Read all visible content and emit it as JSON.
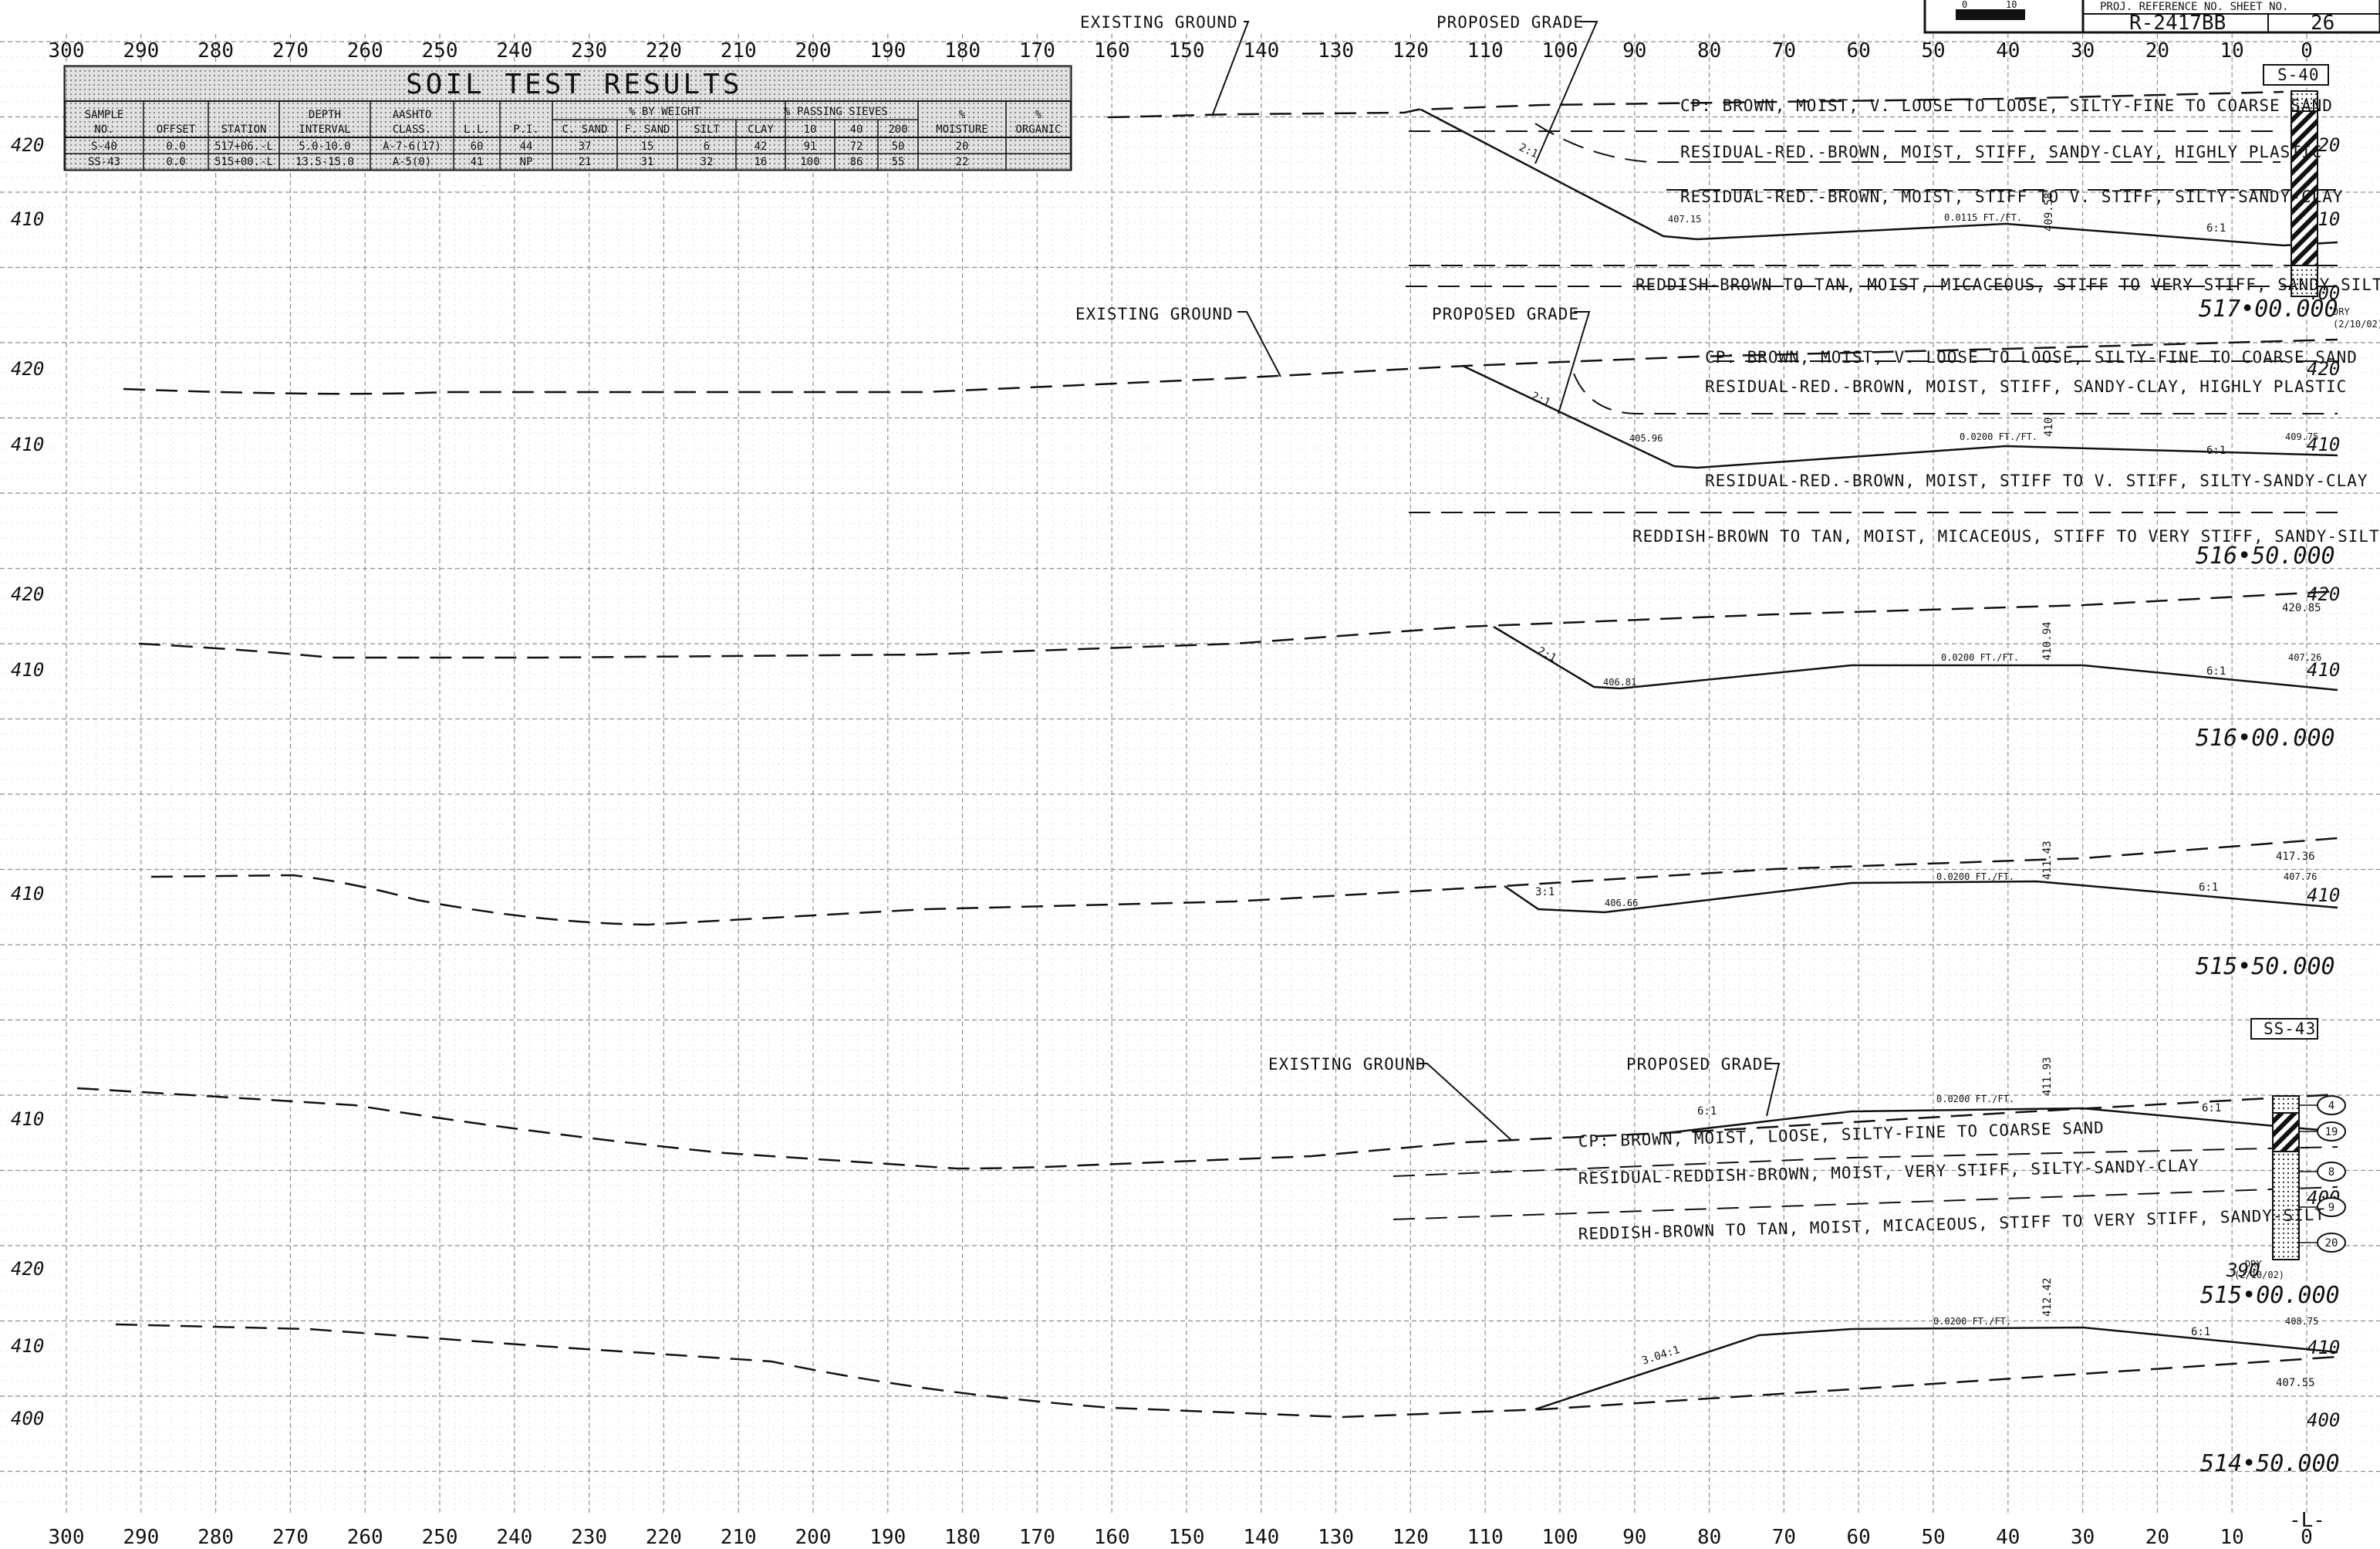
{
  "title_block": {
    "header_label": "PROJ. REFERENCE NO. SHEET NO.",
    "reference_no": "R-2417BB",
    "sheet_no": "26",
    "scale_labels": [
      "0",
      "10"
    ]
  },
  "x_axis": {
    "ticks": [
      "300",
      "290",
      "280",
      "270",
      "260",
      "250",
      "240",
      "230",
      "220",
      "210",
      "200",
      "190",
      "180",
      "170",
      "160",
      "150",
      "140",
      "130",
      "120",
      "110",
      "100",
      "90",
      "80",
      "70",
      "60",
      "50",
      "40",
      "30",
      "20",
      "10",
      "0"
    ],
    "bottom_label": "-L-"
  },
  "soil_table": {
    "title": "SOIL TEST RESULTS",
    "group_headers": {
      "by_weight": "% BY WEIGHT",
      "passing_sieves": "% PASSING SIEVES"
    },
    "columns": [
      "SAMPLE NO.",
      "OFFSET",
      "STATION",
      "DEPTH INTERVAL",
      "AASHTO CLASS.",
      "L.L.",
      "P.I.",
      "C. SAND",
      "F. SAND",
      "SILT",
      "CLAY",
      "10",
      "40",
      "200",
      "% MOISTURE",
      "% ORGANIC"
    ],
    "rows": [
      [
        "S-40",
        "0.0",
        "517+06.-L",
        "5.0-10.0",
        "A-7-6(17)",
        "60",
        "44",
        "37",
        "15",
        "6",
        "42",
        "91",
        "72",
        "50",
        "20",
        ""
      ],
      [
        "SS-43",
        "0.0",
        "515+00.-L",
        "13.5-15.0",
        "A-5(0)",
        "41",
        "NP",
        "21",
        "31",
        "32",
        "16",
        "100",
        "86",
        "55",
        "22",
        ""
      ]
    ]
  },
  "sections": [
    {
      "station": "517+00.000",
      "left_elevs": [
        "420",
        "410"
      ],
      "right_elevs": [
        "420",
        "410",
        "400"
      ],
      "callouts": [
        "EXISTING GROUND",
        "PROPOSED GRADE"
      ],
      "slope_left": "2:1",
      "slope_right": "6:1",
      "grade_label": "0.0115 FT./FT.",
      "point_left": "407.15",
      "centerline_elev": "409.58",
      "boring": "S-40",
      "boring_note": "DRY (2/10/02)",
      "strata": [
        "CP: BROWN, MOIST, V. LOOSE TO LOOSE, SILTY-FINE TO COARSE SAND",
        "RESIDUAL-RED.-BROWN, MOIST, STIFF, SANDY-CLAY, HIGHLY PLASTIC",
        "RESIDUAL-RED.-BROWN, MOIST, STIFF TO V. STIFF, SILTY-SANDY-CLAY",
        "REDDISH-BROWN TO TAN, MOIST, MICACEOUS, STIFF TO VERY STIFF, SANDY-SILT"
      ]
    },
    {
      "station": "516+50.000",
      "left_elevs": [
        "420",
        "410"
      ],
      "right_elevs": [
        "420",
        "410"
      ],
      "callouts": [
        "EXISTING GROUND",
        "PROPOSED GRADE"
      ],
      "slope_left": "2:1",
      "slope_right": "6:1",
      "grade_label": "0.0200 FT./FT.",
      "point_left": "405.96",
      "point_right": "409.75",
      "centerline_elev": "410.",
      "strata": [
        "CP: BROWN, MOIST, V. LOOSE TO LOOSE, SILTY-FINE TO COARSE SAND",
        "RESIDUAL-RED.-BROWN, MOIST, STIFF, SANDY-CLAY, HIGHLY PLASTIC",
        "RESIDUAL-RED.-BROWN, MOIST, STIFF TO V. STIFF, SILTY-SANDY-CLAY",
        "REDDISH-BROWN TO TAN, MOIST, MICACEOUS, STIFF TO VERY STIFF, SANDY-SILT"
      ]
    },
    {
      "station": "516+00.000",
      "left_elevs": [
        "420",
        "410"
      ],
      "right_elevs": [
        "420",
        "410"
      ],
      "top_elev": "420.85",
      "slope_left": "2:1",
      "slope_right": "6:1",
      "grade_label": "0.0200 FT./FT.",
      "point_left": "406.81",
      "point_right": "407.26",
      "centerline_elev": "410.94"
    },
    {
      "station": "515+50.000",
      "left_elevs": [
        "410"
      ],
      "right_elevs": [
        "410"
      ],
      "top_elev": "417.36",
      "slope_left": "3:1",
      "slope_right": "6:1",
      "grade_label": "0.0200 FT./FT.",
      "point_left": "406.66",
      "point_right": "407.76",
      "centerline_elev": "411.43"
    },
    {
      "station": "515+00.000",
      "left_elevs": [
        "410"
      ],
      "right_elevs": [
        "400",
        "390"
      ],
      "callouts": [
        "EXISTING GROUND",
        "PROPOSED GRADE"
      ],
      "slope_left": "6:1",
      "slope_right": "6:1",
      "grade_label": "0.0200 FT./FT.",
      "centerline_elev": "411.93",
      "boring": "SS-43",
      "boring_note": "DRY (2/10/02)",
      "blow_counts": [
        "4",
        "19",
        "8",
        "9",
        "20"
      ],
      "strata": [
        "CP: BROWN, MOIST, LOOSE, SILTY-FINE TO COARSE SAND",
        "RESIDUAL-REDDISH-BROWN, MOIST, VERY STIFF, SILTY-SANDY-CLAY",
        "REDDISH-BROWN TO TAN, MOIST, MICACEOUS, STIFF TO VERY STIFF, SANDY-SILT"
      ]
    },
    {
      "station": "514+50.000",
      "left_elevs": [
        "420",
        "410",
        "400"
      ],
      "right_elevs": [
        "410",
        "400"
      ],
      "slope_left": "3.04:1",
      "slope_right": "6:1",
      "grade_label": "0.0200 FT./FT.",
      "point_right": "408.75",
      "right_low": "407.55",
      "centerline_elev": "412.42"
    }
  ]
}
